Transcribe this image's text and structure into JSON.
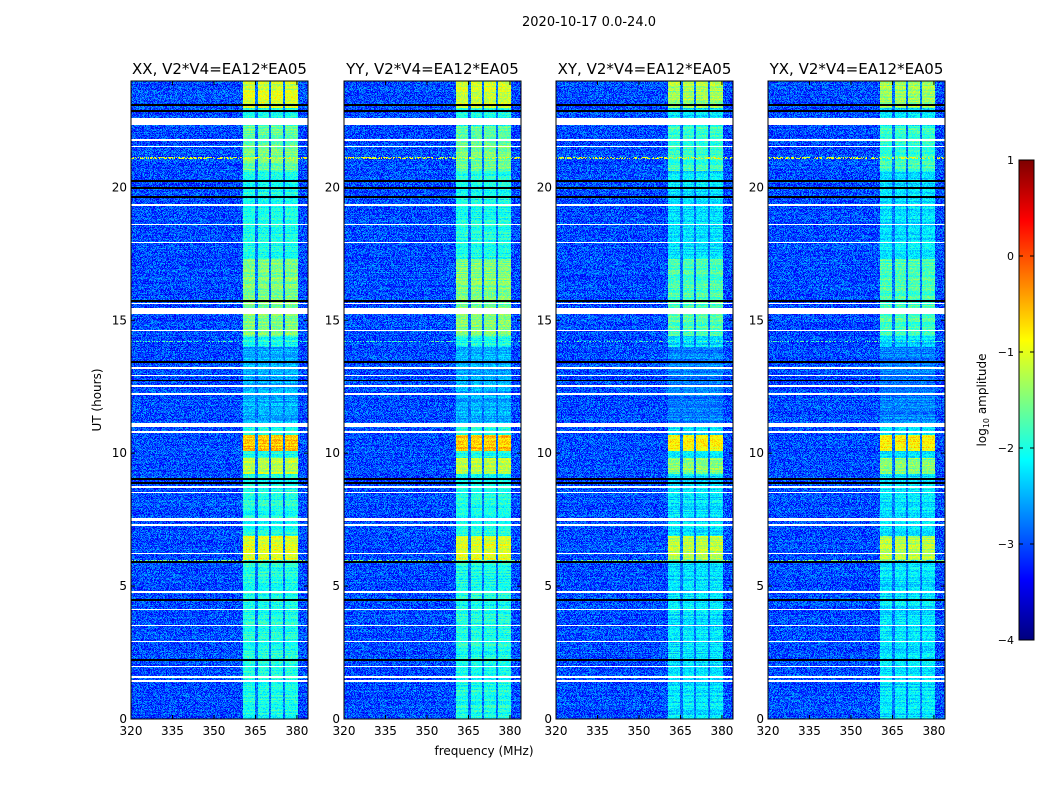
{
  "chart_data": {
    "type": "heatmap",
    "title": "2020-10-17 0.0-24.0",
    "xlabel": "frequency (MHz)",
    "ylabel": "UT (hours)",
    "xlim": [
      320,
      384
    ],
    "ylim": [
      0,
      24
    ],
    "xticks": [
      320,
      335,
      350,
      365,
      380
    ],
    "yticks": [
      0,
      5,
      10,
      15,
      20
    ],
    "panels": [
      {
        "title": "XX, V2*V4=EA12*EA05"
      },
      {
        "title": "YY, V2*V4=EA12*EA05"
      },
      {
        "title": "XY, V2*V4=EA12*EA05"
      },
      {
        "title": "YX, V2*V4=EA12*EA05"
      }
    ],
    "colorbar": {
      "label_main": "log",
      "label_sub": "10",
      "label_rest": " amplitude",
      "colormap": "jet",
      "range": [
        -4,
        1
      ],
      "ticks": [
        1,
        0,
        -1,
        -2,
        -3,
        -4
      ],
      "tick_labels": [
        "1",
        "0",
        "−1",
        "−2",
        "−3",
        "−4"
      ]
    },
    "background_level": -3.0,
    "bright_band_mhz": [
      360.5,
      380.5
    ],
    "band_channel_edges_mhz": [
      365.3,
      370.3,
      375.3
    ],
    "band_levels": [
      {
        "ut": [
          0,
          24
        ],
        "level": -2.0
      },
      {
        "ut": [
          23.0,
          24
        ],
        "level": -1.1
      },
      {
        "ut": [
          20.6,
          22.3
        ],
        "level": -1.6
      },
      {
        "ut": [
          14.4,
          17.3
        ],
        "level": -1.5
      },
      {
        "ut": [
          10.1,
          10.7
        ],
        "level": -0.6
      },
      {
        "ut": [
          9.2,
          9.8
        ],
        "level": -1.2
      },
      {
        "ut": [
          6.0,
          6.9
        ],
        "level": -1.0
      },
      {
        "ut": [
          11.0,
          14.0
        ],
        "level": -2.5
      }
    ],
    "flagged_ut_white": [
      [
        22.35,
        22.6
      ],
      [
        21.75,
        21.82
      ],
      [
        21.5,
        21.55
      ],
      [
        19.3,
        19.38
      ],
      [
        18.6,
        18.63
      ],
      [
        17.9,
        17.93
      ],
      [
        15.25,
        15.45
      ],
      [
        15.6,
        15.65
      ],
      [
        14.6,
        14.63
      ],
      [
        13.15,
        13.25
      ],
      [
        12.9,
        12.95
      ],
      [
        12.5,
        12.55
      ],
      [
        12.2,
        12.25
      ],
      [
        11.0,
        11.12
      ],
      [
        10.75,
        10.85
      ],
      [
        8.7,
        8.75
      ],
      [
        8.5,
        8.55
      ],
      [
        7.45,
        7.55
      ],
      [
        7.25,
        7.32
      ],
      [
        6.2,
        6.24
      ],
      [
        4.75,
        4.8
      ],
      [
        4.1,
        4.15
      ],
      [
        3.5,
        3.55
      ],
      [
        2.9,
        2.95
      ],
      [
        1.95,
        2.0
      ],
      [
        1.55,
        1.62
      ],
      [
        1.4,
        1.45
      ]
    ],
    "flagged_ut_black": [
      [
        23.05,
        23.12
      ],
      [
        22.85,
        22.9
      ],
      [
        20.2,
        20.28
      ],
      [
        19.95,
        20.02
      ],
      [
        19.6,
        19.68
      ],
      [
        15.7,
        15.75
      ],
      [
        13.4,
        13.48
      ],
      [
        12.7,
        12.75
      ],
      [
        9.0,
        9.08
      ],
      [
        8.85,
        8.9
      ],
      [
        5.85,
        5.95
      ],
      [
        4.45,
        4.5
      ],
      [
        2.2,
        2.25
      ]
    ],
    "rfi_lines": [
      {
        "ut": 21.1,
        "level": -1.0
      },
      {
        "ut": 5.95,
        "level": -1.6
      },
      {
        "ut": 14.2,
        "level": -1.8
      }
    ]
  }
}
